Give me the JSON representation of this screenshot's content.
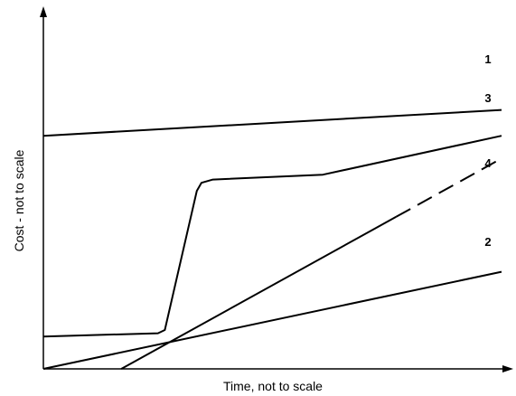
{
  "chart_data": {
    "type": "line",
    "title": "",
    "xlabel": "Time, not to scale",
    "ylabel": "Cost - not to scale",
    "xlim": [
      0,
      10
    ],
    "ylim": [
      0,
      10
    ],
    "grid": false,
    "legend": "none",
    "colors": {
      "axis": "#000000",
      "line": "#000000",
      "background": "#ffffff"
    },
    "series": [
      {
        "name": "1",
        "style": "solid",
        "x": [
          0,
          10
        ],
        "y": [
          7.2,
          8.0
        ]
      },
      {
        "name": "2",
        "style": "solid",
        "x": [
          0,
          10
        ],
        "y": [
          0.0,
          3.0
        ]
      },
      {
        "name": "3",
        "style": "solid",
        "x": [
          0,
          2.5,
          2.65,
          3.35,
          3.45,
          3.7,
          6.1,
          10
        ],
        "y": [
          1.0,
          1.1,
          1.2,
          5.5,
          5.75,
          5.85,
          6.0,
          7.2
        ]
      },
      {
        "name": "4",
        "style": "solid-then-dashed",
        "dash_start_x": 7.7,
        "x": [
          1.7,
          10
        ],
        "y": [
          0.0,
          6.5
        ]
      }
    ]
  }
}
